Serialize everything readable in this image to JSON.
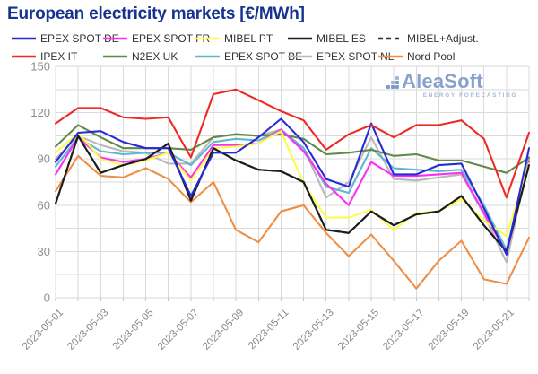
{
  "title": "European electricity markets [€/MWh]",
  "logo": {
    "name": "AleaSoft",
    "subtitle": "ENERGY FORECASTING"
  },
  "colors": {
    "title": "#16338f",
    "grid": "#dadada",
    "tick_labels": "#8c8c8c",
    "legend_text": "#333333",
    "background": "#ffffff"
  },
  "chart_data": {
    "type": "line",
    "title": "European electricity markets [€/MWh]",
    "xlabel": "",
    "ylabel": "",
    "ylim": [
      0,
      150
    ],
    "yticks": [
      0,
      30,
      60,
      90,
      120,
      150
    ],
    "grid": true,
    "grid_step_y": 15,
    "legend_position": "top",
    "xtick_label_step": 2,
    "x": [
      "2023-05-01",
      "2023-05-02",
      "2023-05-03",
      "2023-05-04",
      "2023-05-05",
      "2023-05-06",
      "2023-05-07",
      "2023-05-08",
      "2023-05-09",
      "2023-05-10",
      "2023-05-11",
      "2023-05-12",
      "2023-05-13",
      "2023-05-14",
      "2023-05-15",
      "2023-05-16",
      "2023-05-17",
      "2023-05-18",
      "2023-05-19",
      "2023-05-20",
      "2023-05-21",
      "2023-05-22"
    ],
    "series": [
      {
        "name": "EPEX SPOT DE",
        "color": "#2929d6",
        "dash": null,
        "values": [
          88,
          107,
          108,
          101,
          97,
          97,
          66,
          94,
          94,
          104,
          116,
          101,
          77,
          72,
          113,
          80,
          80,
          86,
          87,
          58,
          28,
          97
        ]
      },
      {
        "name": "EPEX SPOT FR",
        "color": "#fb2ef4",
        "dash": null,
        "values": [
          80,
          104,
          91,
          88,
          90,
          94,
          78,
          99,
          99,
          100,
          109,
          95,
          74,
          60,
          88,
          79,
          79,
          80,
          81,
          55,
          29,
          88
        ]
      },
      {
        "name": "MIBEL PT",
        "color": "#fcfc4a",
        "dash": null,
        "values": [
          94,
          107,
          90,
          86,
          89,
          94,
          76,
          97,
          98,
          100,
          108,
          74,
          52,
          52,
          57,
          44,
          55,
          56,
          64,
          50,
          40,
          87
        ]
      },
      {
        "name": "MIBEL ES",
        "color": "#1c1c1c",
        "dash": null,
        "values": [
          61,
          105,
          81,
          86,
          90,
          100,
          63,
          97,
          89,
          83,
          82,
          75,
          44,
          42,
          56,
          47,
          54,
          56,
          66,
          47,
          30,
          86
        ]
      },
      {
        "name": "MIBEL+Adjust.",
        "color": "#2b2b2b",
        "dash": "5 4",
        "values": [
          61,
          105,
          81,
          86,
          90,
          100,
          63,
          97,
          89,
          83,
          82,
          75,
          44,
          42,
          56,
          47,
          54,
          56,
          66,
          47,
          30,
          86
        ]
      },
      {
        "name": "IPEX IT",
        "color": "#ee2a24",
        "dash": null,
        "values": [
          113,
          123,
          123,
          117,
          116,
          117,
          91,
          132,
          135,
          128,
          121,
          115,
          96,
          106,
          112,
          104,
          112,
          112,
          115,
          103,
          65,
          107
        ]
      },
      {
        "name": "N2EX UK",
        "color": "#5f8a49",
        "dash": null,
        "values": [
          98,
          112,
          104,
          97,
          97,
          97,
          96,
          104,
          106,
          105,
          106,
          103,
          93,
          94,
          96,
          92,
          93,
          89,
          89,
          85,
          81,
          91
        ]
      },
      {
        "name": "EPEX SPOT BE",
        "color": "#5cb8ca",
        "dash": null,
        "values": [
          85,
          104,
          95,
          93,
          94,
          94,
          86,
          101,
          103,
          102,
          109,
          97,
          72,
          68,
          97,
          84,
          83,
          82,
          83,
          60,
          31,
          91
        ]
      },
      {
        "name": "EPEX SPOT NL",
        "color": "#b9b9b9",
        "dash": null,
        "values": [
          90,
          105,
          99,
          95,
          94,
          87,
          87,
          104,
          106,
          105,
          109,
          97,
          65,
          75,
          104,
          77,
          76,
          78,
          80,
          54,
          23,
          90
        ]
      },
      {
        "name": "Nord Pool",
        "color": "#ee8f45",
        "dash": null,
        "values": [
          69,
          92,
          79,
          78,
          84,
          77,
          62,
          75,
          44,
          36,
          56,
          60,
          42,
          27,
          41,
          24,
          6,
          24,
          37,
          12,
          9,
          39
        ]
      }
    ],
    "legend_rows": [
      [
        0,
        1,
        2,
        3,
        4
      ],
      [
        5,
        6,
        7,
        8,
        9
      ]
    ],
    "draw_order": [
      8,
      7,
      6,
      1,
      2,
      9,
      4,
      3,
      0,
      5
    ]
  }
}
